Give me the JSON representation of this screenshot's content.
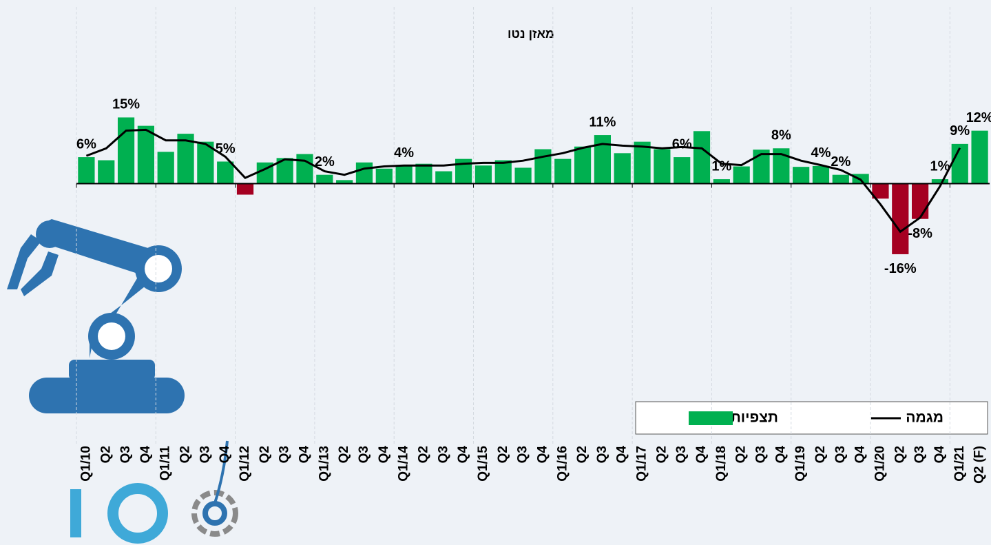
{
  "chart_data": {
    "type": "bar",
    "title": "מאזן נטו",
    "categories": [
      "Q1/10",
      "Q2",
      "Q3",
      "Q4",
      "Q1/11",
      "Q2",
      "Q3",
      "Q4",
      "Q1/12",
      "Q2",
      "Q3",
      "Q4",
      "Q1/13",
      "Q2",
      "Q3",
      "Q4",
      "Q1/14",
      "Q2",
      "Q3",
      "Q4",
      "Q1/15",
      "Q2",
      "Q3",
      "Q4",
      "Q1/16",
      "Q2",
      "Q3",
      "Q4",
      "Q1/17",
      "Q2",
      "Q3",
      "Q4",
      "Q1/18",
      "Q2",
      "Q3",
      "Q4",
      "Q1/19",
      "Q2",
      "Q3",
      "Q4",
      "Q1/20",
      "Q2",
      "Q3",
      "Q4",
      "Q1/21",
      "Q2 (F)"
    ],
    "series": [
      {
        "name": "תצפיות",
        "type": "bar",
        "color": "#00b050",
        "negative_color": "#a50021",
        "values": [
          6,
          5.3,
          15,
          13.1,
          7.2,
          11.3,
          9.5,
          5,
          -2.5,
          4.8,
          5.8,
          6.7,
          2,
          0.8,
          4.8,
          3.4,
          4,
          4.5,
          2.8,
          5.6,
          4.1,
          5.3,
          3.6,
          7.8,
          5.6,
          8.4,
          11,
          6.9,
          9.5,
          7.8,
          6,
          11.9,
          1,
          3.9,
          7.7,
          8,
          3.8,
          4,
          2,
          2.2,
          -3.4,
          -16,
          -8,
          1,
          9,
          12
        ],
        "value_labels": [
          "6%",
          null,
          "15%",
          null,
          null,
          null,
          null,
          "5%",
          null,
          null,
          null,
          null,
          "2%",
          null,
          null,
          null,
          "4%",
          null,
          null,
          null,
          null,
          null,
          null,
          null,
          null,
          null,
          "11%",
          null,
          null,
          null,
          "6%",
          null,
          "1%",
          null,
          null,
          "8%",
          null,
          "4%",
          "2%",
          null,
          null,
          "-16%",
          "-8%",
          "1%",
          "9%",
          "12%"
        ]
      },
      {
        "name": "מגמה",
        "type": "line",
        "color": "#000000",
        "values": [
          6.3,
          8,
          12,
          12.2,
          9.8,
          9.8,
          9,
          6.1,
          1.3,
          3.3,
          5.5,
          5.2,
          2.8,
          2,
          3.4,
          3.9,
          4.1,
          4.1,
          4.1,
          4.5,
          4.7,
          4.7,
          5.2,
          6.1,
          6.9,
          8.1,
          9,
          8.6,
          8.4,
          8,
          8.3,
          8,
          4.5,
          4.2,
          6.7,
          6.7,
          5.2,
          4.2,
          3.1,
          0.9,
          -4.7,
          -10.9,
          -7.7,
          -0.6,
          8.1,
          null
        ]
      }
    ],
    "ylim": [
      -26,
      26
    ],
    "grid": true,
    "legend": "bottom-right"
  }
}
